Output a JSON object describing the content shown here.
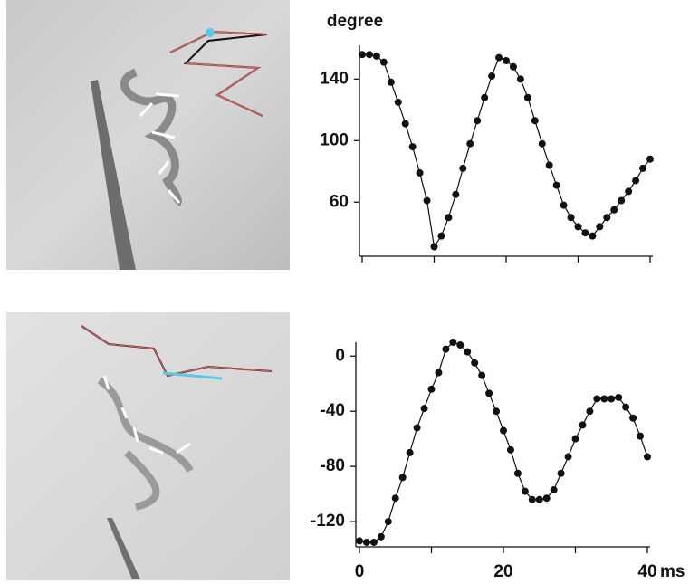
{
  "chart_data": [
    {
      "type": "line",
      "title": "degree",
      "color": "#111111",
      "x": [
        0,
        1,
        2,
        3,
        4,
        5,
        6,
        7,
        8,
        9,
        10,
        11,
        12,
        13,
        14,
        15,
        16,
        17,
        18,
        19,
        20,
        21,
        22,
        23,
        24,
        25,
        26,
        27,
        28,
        29,
        30,
        31,
        32,
        33,
        34,
        35,
        36,
        37,
        38,
        39,
        40
      ],
      "values": [
        156,
        156,
        155,
        151,
        138,
        125,
        111,
        96,
        79,
        61,
        31,
        38,
        50,
        65,
        82,
        98,
        113,
        128,
        142,
        154,
        152,
        148,
        140,
        128,
        113,
        98,
        84,
        71,
        58,
        50,
        44,
        40,
        38,
        44,
        50,
        55,
        61,
        67,
        74,
        82,
        88
      ],
      "xlim": [
        0,
        40
      ],
      "xticks": [
        0,
        10,
        20,
        30,
        40
      ],
      "show_xtick_labels": false,
      "ylim": [
        26,
        162
      ],
      "yticks": [
        60,
        100,
        140
      ]
    },
    {
      "type": "line",
      "color": "#111111",
      "xlabel": "ms",
      "x": [
        0,
        1,
        2,
        3,
        4,
        5,
        6,
        7,
        8,
        9,
        10,
        11,
        12,
        13,
        14,
        15,
        16,
        17,
        18,
        19,
        20,
        21,
        22,
        23,
        24,
        25,
        26,
        27,
        28,
        29,
        30,
        31,
        32,
        33,
        34,
        35,
        36,
        37,
        38,
        39,
        40
      ],
      "values": [
        -134,
        -135,
        -135,
        -131,
        -120,
        -103,
        -88,
        -70,
        -52,
        -38,
        -24,
        -12,
        5,
        10,
        8,
        3,
        -5,
        -14,
        -27,
        -40,
        -54,
        -68,
        -85,
        -98,
        -104,
        -104,
        -103,
        -97,
        -85,
        -73,
        -60,
        -50,
        -40,
        -31,
        -31,
        -31,
        -30,
        -37,
        -45,
        -58,
        -73
      ],
      "xlim": [
        0,
        40
      ],
      "xticks": [
        0,
        20,
        40
      ],
      "xminorticks": [
        10,
        30
      ],
      "show_xtick_labels": true,
      "ylim": [
        -137,
        10
      ],
      "yticks": [
        -120,
        -80,
        -40,
        0
      ]
    }
  ]
}
